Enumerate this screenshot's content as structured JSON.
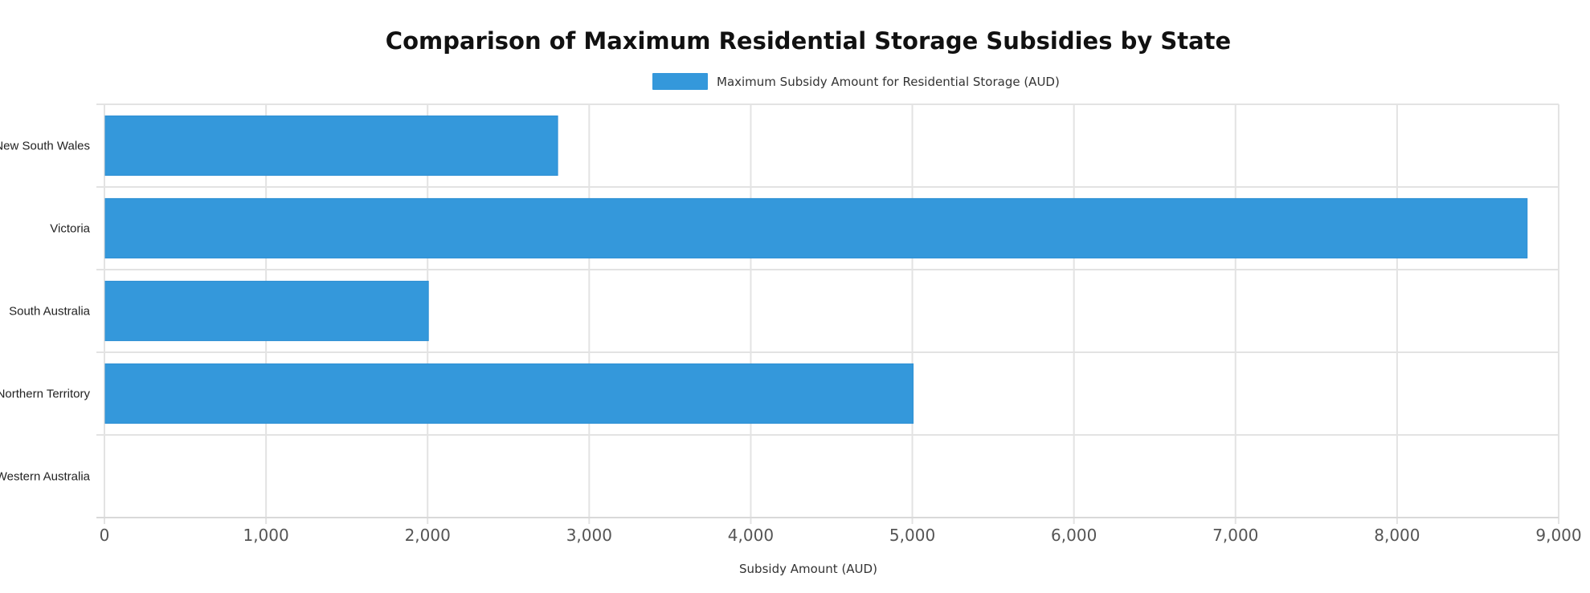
{
  "chart_data": {
    "type": "bar",
    "orientation": "horizontal",
    "title": "Comparison of Maximum Residential Storage Subsidies by State",
    "categories": [
      "New South Wales",
      "Victoria",
      "South Australia",
      "Northern Territory",
      "Western Australia"
    ],
    "series": [
      {
        "name": "Maximum Subsidy Amount for Residential Storage (AUD)",
        "values": [
          2800,
          8800,
          2000,
          5000,
          0
        ],
        "color": "#3498db"
      }
    ],
    "xlabel": "Subsidy Amount (AUD)",
    "ylabel": "",
    "xlim": [
      0,
      9000
    ],
    "ticks": [
      "0",
      "1,000",
      "2,000",
      "3,000",
      "4,000",
      "5,000",
      "6,000",
      "7,000",
      "8,000",
      "9,000"
    ],
    "grid": true,
    "legend_position": "top-center"
  }
}
